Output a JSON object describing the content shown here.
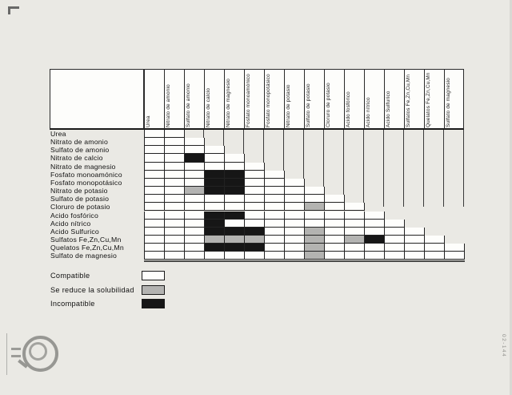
{
  "page": {
    "background": "#eae9e4",
    "side_code": "02-144"
  },
  "matrix": {
    "columns": [
      "Urea",
      "Nitrato de amonio",
      "Sulfato de amonio",
      "Nitrato de calcio",
      "Nitrato de magnesio",
      "Fosfato monoamónico",
      "Fosfato monopotásico",
      "Nitrato de potasio",
      "Sulfato de potasio",
      "Cloruro de potasio",
      "Acido fosfórico",
      "Acido nítrico",
      "Acido Sulfurico",
      "Sulfatos Fe,Zn,Cu,Mn",
      "Quelatos Fe,Zn,Cu,Mn",
      "Sulfato de magnesio"
    ],
    "rows": [
      {
        "label": "Urea",
        "cells": "WW"
      },
      {
        "label": "Nitrato de amonio",
        "cells": "WWW"
      },
      {
        "label": "Sulfato de amonio",
        "cells": "WWWW"
      },
      {
        "label": "Nitrato de calcio",
        "cells": "WWBWW"
      },
      {
        "label": "Nitrato de magnesio",
        "cells": "WWWWWW"
      },
      {
        "label": "Fosfato monoamónico",
        "cells": "WWWBBWW"
      },
      {
        "label": "Fosfato monopotásico",
        "cells": "WWWBBWWW"
      },
      {
        "label": "Nitrato de potasio",
        "cells": "WWGBBWWWW"
      },
      {
        "label": "Sulfato de potasio",
        "cells": "WWWWWWWWWW"
      },
      {
        "label": "Cloruro de potasio",
        "cells": "WWWWWWWWGWW"
      },
      {
        "label": "Acido fosfórico",
        "cells": "WWWBBWWWWWWW"
      },
      {
        "label": "Acido nítrico",
        "cells": "WWWBWWWWWWWWW"
      },
      {
        "label": "Acido Sulfurico",
        "cells": "WWWBBBWWGWWWWW"
      },
      {
        "label": "Sulfatos Fe,Zn,Cu,Mn",
        "cells": "WWWGGGWWGWGBWWW"
      },
      {
        "label": "Quelatos Fe,Zn,Cu,Mn",
        "cells": "WWWBBBWWGWWWWWWW"
      },
      {
        "label": "Sulfato de magnesio",
        "cells": "WWWWWWWWGWWWWWWW"
      }
    ],
    "colors": {
      "W": "#fefefc",
      "G": "#b3b3b1",
      "B": "#161616",
      "grid": "#222222"
    }
  },
  "legend": {
    "items": [
      {
        "label": "Compatible",
        "code": "W"
      },
      {
        "label": "Se reduce la solubilidad",
        "code": "G"
      },
      {
        "label": "Incompatible",
        "code": "B"
      }
    ]
  },
  "chart_data": {
    "type": "heatmap",
    "title": "",
    "categories_x": [
      "Urea",
      "Nitrato de amonio",
      "Sulfato de amonio",
      "Nitrato de calcio",
      "Nitrato de magnesio",
      "Fosfato monoamónico",
      "Fosfato monopotásico",
      "Nitrato de potasio",
      "Sulfato de potasio",
      "Cloruro de potasio",
      "Acido fosfórico",
      "Acido nítrico",
      "Acido Sulfurico",
      "Sulfatos Fe,Zn,Cu,Mn",
      "Quelatos Fe,Zn,Cu,Mn",
      "Sulfato de magnesio"
    ],
    "categories_y": [
      "Urea",
      "Nitrato de amonio",
      "Sulfato de amonio",
      "Nitrato de calcio",
      "Nitrato de magnesio",
      "Fosfato monoamónico",
      "Fosfato monopotásico",
      "Nitrato de potasio",
      "Sulfato de potasio",
      "Cloruro de potasio",
      "Acido fosfórico",
      "Acido nítrico",
      "Acido Sulfurico",
      "Sulfatos Fe,Zn,Cu,Mn",
      "Quelatos Fe,Zn,Cu,Mn",
      "Sulfato de magnesio"
    ],
    "value_legend": {
      "W": "Compatible",
      "G": "Se reduce la solubilidad",
      "B": "Incompatible"
    },
    "rows": [
      "WW",
      "WWW",
      "WWWW",
      "WWBWW",
      "WWWWWW",
      "WWWBBWW",
      "WWWBBWWW",
      "WWGBBWWWW",
      "WWWWWWWWWW",
      "WWWWWWWWGWW",
      "WWWBBWWWWWWW",
      "WWWBWWWWWWWWW",
      "WWWBBBWWGWWWWW",
      "WWWGGGWWGWGBWWW",
      "WWWBBBWWGWWWWWWW",
      "WWWWWWWWGWWWWWWW"
    ],
    "layout": "lower-triangular stair matrix, each row i spans columns 1..min(i+1,16); legend bottom-left; grid on"
  }
}
